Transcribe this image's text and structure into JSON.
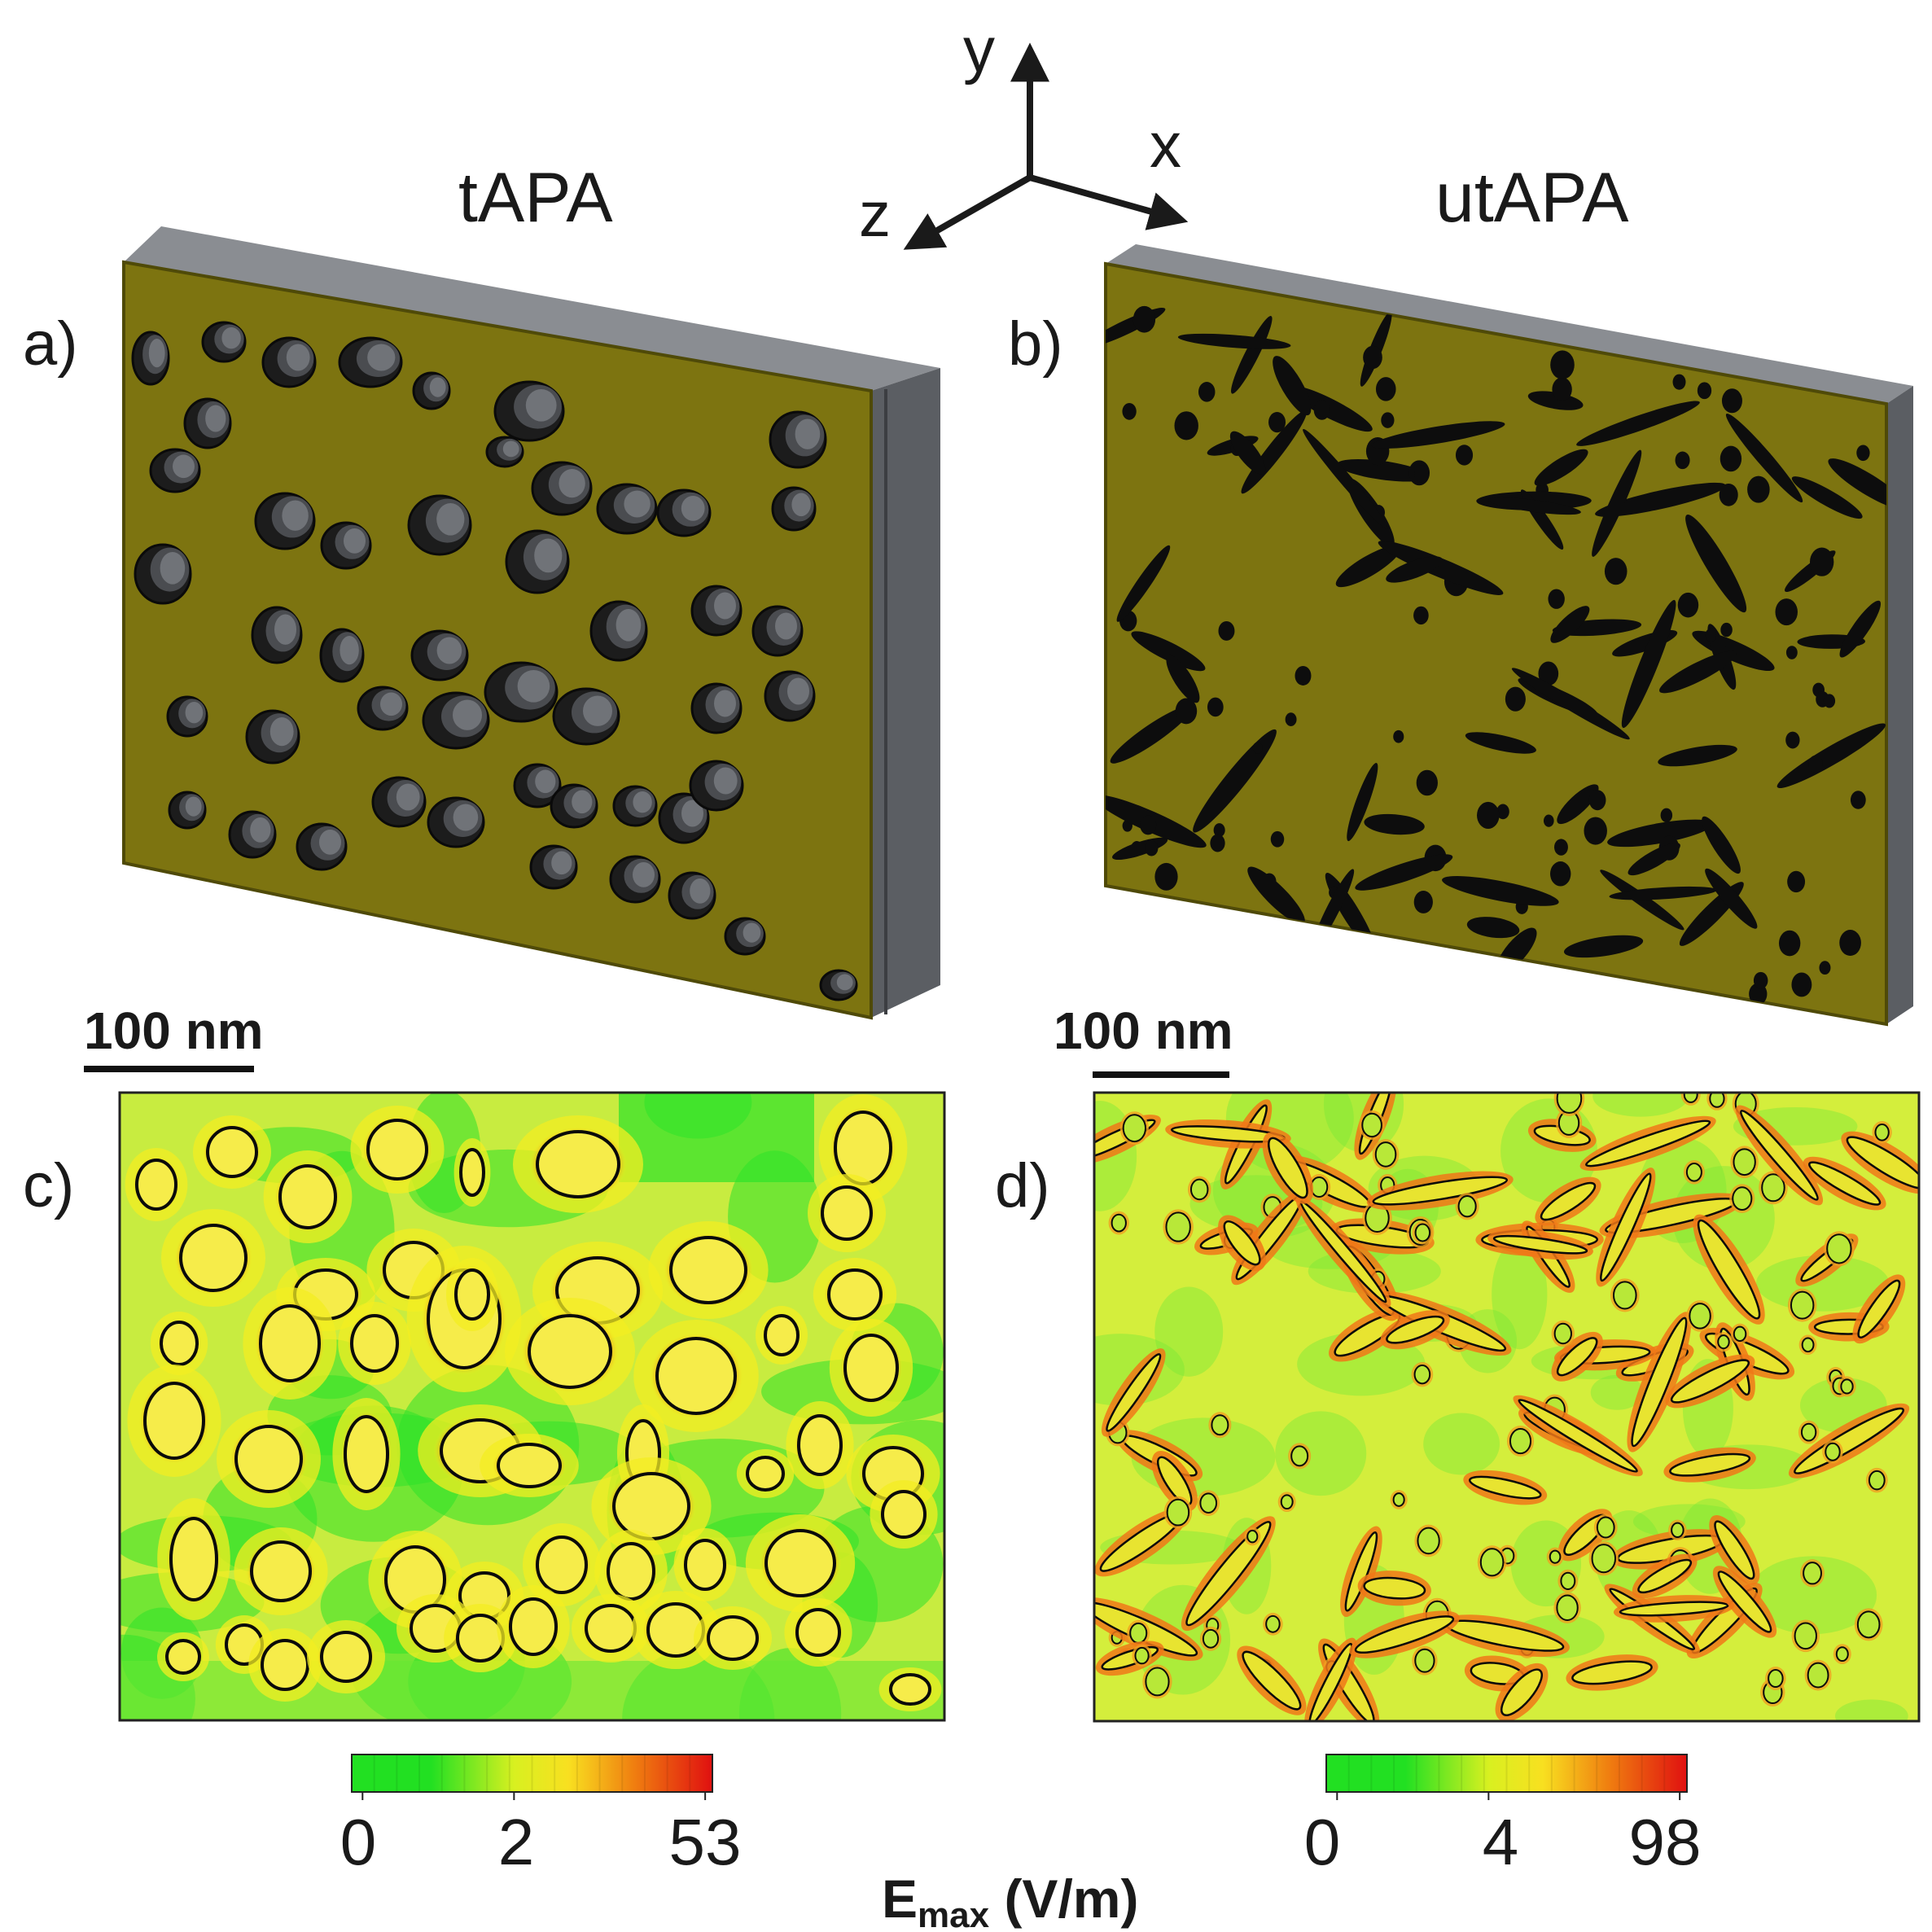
{
  "axes": {
    "y": "y",
    "x": "x",
    "z": "z"
  },
  "panels": {
    "a": {
      "label": "a)",
      "title": "tAPA"
    },
    "b": {
      "label": "b)",
      "title": "utAPA"
    },
    "c": {
      "label": "c)"
    },
    "d": {
      "label": "d)"
    }
  },
  "scalebars": {
    "left": "100 nm",
    "right": "100 nm"
  },
  "colorbars": {
    "left": {
      "ticks": [
        "0",
        "2",
        "53"
      ]
    },
    "right": {
      "ticks": [
        "0",
        "4",
        "98"
      ]
    }
  },
  "quantity": {
    "main": "E",
    "sub": "max",
    "unit": " (V/m)"
  },
  "colors": {
    "membrane": "#7d7410",
    "membrane_dark": "#4f4a08",
    "slab_side": "#5b5e63",
    "slab_top": "#8a8d92",
    "pore": "#141414",
    "field_low": "#22e022",
    "field_mid": "#f0f020",
    "field_high": "#e01010"
  },
  "chart_data": [
    {
      "type": "heatmap",
      "panel": "c",
      "colorbar_ticks": [
        0,
        2,
        53
      ],
      "quantity": "Emax",
      "unit": "V/m"
    },
    {
      "type": "heatmap",
      "panel": "d",
      "colorbar_ticks": [
        0,
        4,
        98
      ],
      "quantity": "Emax",
      "unit": "V/m"
    }
  ]
}
